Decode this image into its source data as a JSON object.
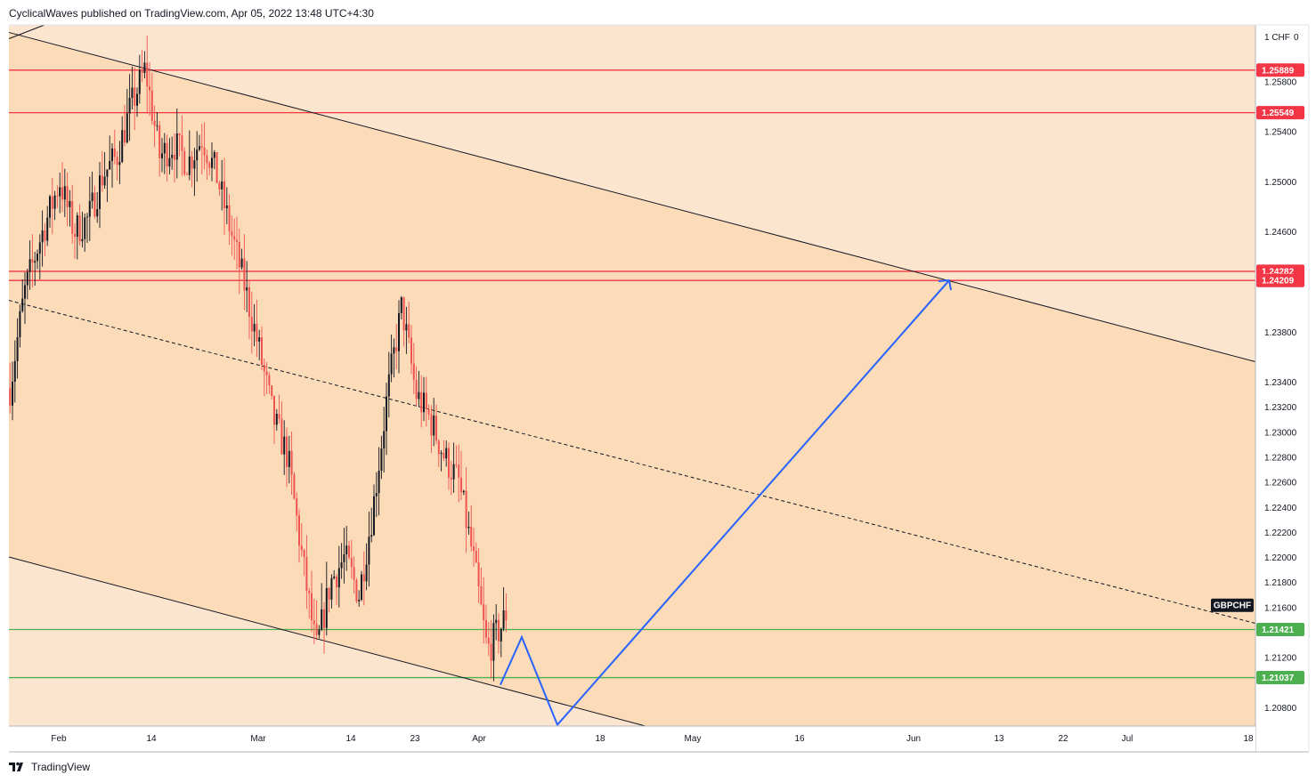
{
  "header": {
    "publisher_line": "CyclicalWaves published on TradingView.com, Apr 05, 2022 13:48 UTC+4:30"
  },
  "footer": {
    "brand": "TradingView",
    "logo_icon": "tradingview-logo-icon"
  },
  "currency_label": "1 CHF",
  "currency_zero": "0",
  "colors": {
    "background_light": "#fce5cf",
    "channel_fill": "#fbdbb8",
    "level_red": "#f23645",
    "level_green": "#4caf50",
    "projection_blue": "#2962ff",
    "candle_bull": "#131722",
    "candle_bear": "#ef5350"
  },
  "chart_data": {
    "type": "candlestick",
    "symbol": "GBPCHF",
    "x_axis": {
      "ticks": [
        {
          "label": "Feb",
          "date": "2022-02-01"
        },
        {
          "label": "14",
          "date": "2022-02-14"
        },
        {
          "label": "Mar",
          "date": "2022-03-01"
        },
        {
          "label": "14",
          "date": "2022-03-14"
        },
        {
          "label": "23",
          "date": "2022-03-23"
        },
        {
          "label": "Apr",
          "date": "2022-04-01"
        },
        {
          "label": "18",
          "date": "2022-04-18"
        },
        {
          "label": "May",
          "date": "2022-05-01"
        },
        {
          "label": "16",
          "date": "2022-05-16"
        },
        {
          "label": "Jun",
          "date": "2022-06-01"
        },
        {
          "label": "13",
          "date": "2022-06-13"
        },
        {
          "label": "22",
          "date": "2022-06-22"
        },
        {
          "label": "Jul",
          "date": "2022-07-01"
        },
        {
          "label": "18",
          "date": "2022-07-18"
        }
      ]
    },
    "y_axis": {
      "range": [
        1.2065,
        1.2625
      ],
      "ticks": [
        "1.25800",
        "1.25400",
        "1.25000",
        "1.24600",
        "1.23800",
        "1.23400",
        "1.23200",
        "1.23000",
        "1.22800",
        "1.22600",
        "1.22400",
        "1.22200",
        "1.22000",
        "1.21800",
        "1.21600",
        "1.21200",
        "1.20800"
      ]
    },
    "price_levels": [
      {
        "value": 1.25889,
        "label": "1.25889",
        "kind": "resistance"
      },
      {
        "value": 1.25549,
        "label": "1.25549",
        "kind": "resistance"
      },
      {
        "value": 1.24282,
        "label": "1.24282",
        "kind": "resistance"
      },
      {
        "value": 1.24209,
        "label": "1.24209",
        "kind": "resistance"
      },
      {
        "value": 1.21421,
        "label": "1.21421",
        "kind": "support"
      },
      {
        "value": 1.21037,
        "label": "1.21037",
        "kind": "support"
      }
    ],
    "current_price_tag": {
      "label": "GBPCHF",
      "value": 1.21615
    },
    "channel": {
      "upper": [
        {
          "date": "2022-01-25",
          "price": 1.2619
        },
        {
          "date": "2022-07-19",
          "price": 1.2356
        }
      ],
      "mid": [
        {
          "date": "2022-01-25",
          "price": 1.2405
        },
        {
          "date": "2022-07-19",
          "price": 1.2147
        }
      ],
      "lower": [
        {
          "date": "2022-01-25",
          "price": 1.22
        },
        {
          "date": "2022-04-25",
          "price": 1.2064
        }
      ]
    },
    "extra_line": [
      {
        "date": "2022-01-25",
        "price": 1.2614
      },
      {
        "date": "2022-01-30",
        "price": 1.2625
      }
    ],
    "projection": [
      {
        "date": "2022-04-04",
        "price": 1.2098
      },
      {
        "date": "2022-04-07",
        "price": 1.2136
      },
      {
        "date": "2022-04-12",
        "price": 1.2066
      },
      {
        "date": "2022-06-06",
        "price": 1.2421
      }
    ],
    "price_path": [
      {
        "date": "2022-01-25",
        "price": 1.2335
      },
      {
        "date": "2022-01-27",
        "price": 1.241
      },
      {
        "date": "2022-01-29",
        "price": 1.245
      },
      {
        "date": "2022-02-01",
        "price": 1.25
      },
      {
        "date": "2022-02-03",
        "price": 1.246
      },
      {
        "date": "2022-02-05",
        "price": 1.247
      },
      {
        "date": "2022-02-07",
        "price": 1.2505
      },
      {
        "date": "2022-02-09",
        "price": 1.252
      },
      {
        "date": "2022-02-11",
        "price": 1.256
      },
      {
        "date": "2022-02-13",
        "price": 1.259
      },
      {
        "date": "2022-02-15",
        "price": 1.252
      },
      {
        "date": "2022-02-17",
        "price": 1.253
      },
      {
        "date": "2022-02-19",
        "price": 1.2515
      },
      {
        "date": "2022-02-21",
        "price": 1.2535
      },
      {
        "date": "2022-02-23",
        "price": 1.2505
      },
      {
        "date": "2022-02-25",
        "price": 1.246
      },
      {
        "date": "2022-02-27",
        "price": 1.2415
      },
      {
        "date": "2022-03-01",
        "price": 1.2365
      },
      {
        "date": "2022-03-03",
        "price": 1.231
      },
      {
        "date": "2022-03-05",
        "price": 1.228
      },
      {
        "date": "2022-03-07",
        "price": 1.22
      },
      {
        "date": "2022-03-09",
        "price": 1.2125
      },
      {
        "date": "2022-03-11",
        "price": 1.218
      },
      {
        "date": "2022-03-13",
        "price": 1.22
      },
      {
        "date": "2022-03-15",
        "price": 1.217
      },
      {
        "date": "2022-03-17",
        "price": 1.224
      },
      {
        "date": "2022-03-19",
        "price": 1.233
      },
      {
        "date": "2022-03-21",
        "price": 1.24
      },
      {
        "date": "2022-03-23",
        "price": 1.233
      },
      {
        "date": "2022-03-25",
        "price": 1.231
      },
      {
        "date": "2022-03-27",
        "price": 1.228
      },
      {
        "date": "2022-03-29",
        "price": 1.226
      },
      {
        "date": "2022-03-31",
        "price": 1.22
      },
      {
        "date": "2022-04-02",
        "price": 1.2125
      },
      {
        "date": "2022-04-04",
        "price": 1.2145
      },
      {
        "date": "2022-04-05",
        "price": 1.216
      }
    ]
  }
}
